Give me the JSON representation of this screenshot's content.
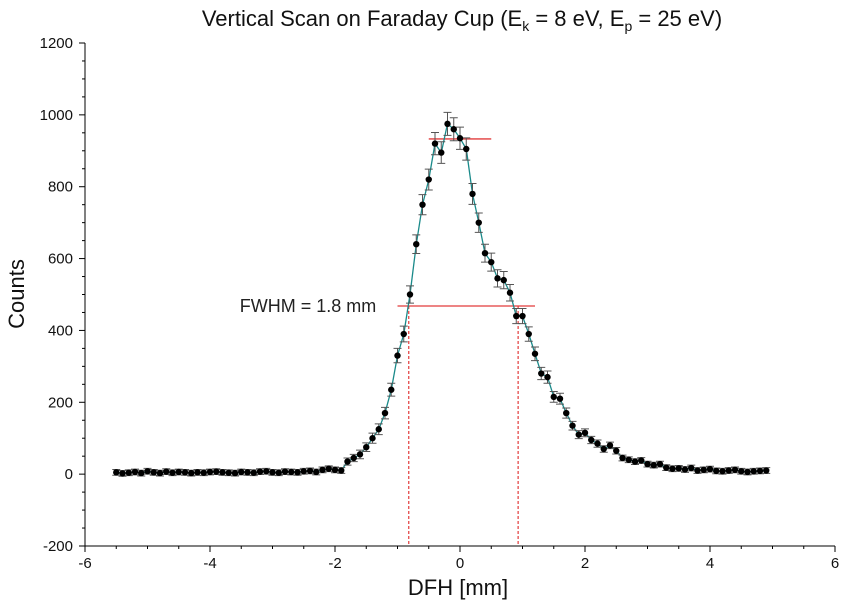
{
  "chart_data": {
    "type": "scatter",
    "title": {
      "prefix": "Vertical Scan on Faraday Cup (E",
      "sub1": "k",
      "mid": " = 8 eV, E",
      "sub2": "p",
      "suffix": " = 25 eV)"
    },
    "xlabel": "DFH [mm]",
    "ylabel": "Counts",
    "xlim": [
      -6,
      6
    ],
    "ylim": [
      -200,
      1200
    ],
    "x_ticks": [
      -6,
      -4,
      -2,
      0,
      2,
      4,
      6
    ],
    "y_ticks": [
      -200,
      0,
      200,
      400,
      600,
      800,
      1000,
      1200
    ],
    "x_tick_labels": [
      "-6",
      "-4",
      "-2",
      "0",
      "2",
      "4",
      "6"
    ],
    "y_tick_labels": [
      "-200",
      "0",
      "200",
      "400",
      "600",
      "800",
      "1000",
      "1200"
    ],
    "grid": false,
    "colors": {
      "points": "#000000",
      "errorbars": "#555555",
      "fit": "#1a8a8a",
      "annotation": "#e23b3b"
    },
    "series": [
      {
        "x": [
          -5.5,
          -5.4,
          -5.3,
          -5.2,
          -5.1,
          -5.0,
          -4.9,
          -4.8,
          -4.7,
          -4.6,
          -4.5,
          -4.4,
          -4.3,
          -4.2,
          -4.1,
          -4.0,
          -3.9,
          -3.8,
          -3.7,
          -3.6,
          -3.5,
          -3.4,
          -3.3,
          -3.2,
          -3.1,
          -3.0,
          -2.9,
          -2.8,
          -2.7,
          -2.6,
          -2.5,
          -2.4,
          -2.3,
          -2.2,
          -2.1,
          -2.0,
          -1.9,
          -1.8,
          -1.7,
          -1.6,
          -1.5,
          -1.4,
          -1.3,
          -1.2,
          -1.1,
          -1.0,
          -0.9,
          -0.8,
          -0.7,
          -0.6,
          -0.5,
          -0.4,
          -0.3,
          -0.2,
          -0.1,
          0.0,
          0.1,
          0.2,
          0.3,
          0.4,
          0.5,
          0.6,
          0.7,
          0.8,
          0.9,
          1.0,
          1.1,
          1.2,
          1.3,
          1.4,
          1.5,
          1.6,
          1.7,
          1.8,
          1.9,
          2.0,
          2.1,
          2.2,
          2.3,
          2.4,
          2.5,
          2.6,
          2.7,
          2.8,
          2.9,
          3.0,
          3.1,
          3.2,
          3.3,
          3.4,
          3.5,
          3.6,
          3.7,
          3.8,
          3.9,
          4.0,
          4.1,
          4.2,
          4.3,
          4.4,
          4.5,
          4.6,
          4.7,
          4.8,
          4.9
        ],
        "y": [
          5,
          2,
          4,
          6,
          3,
          8,
          5,
          3,
          7,
          4,
          6,
          5,
          3,
          5,
          4,
          6,
          7,
          5,
          4,
          3,
          6,
          5,
          4,
          7,
          8,
          5,
          4,
          7,
          6,
          5,
          8,
          9,
          6,
          12,
          15,
          12,
          10,
          35,
          45,
          55,
          75,
          100,
          125,
          170,
          235,
          330,
          390,
          500,
          640,
          750,
          820,
          920,
          895,
          975,
          960,
          935,
          905,
          780,
          700,
          615,
          590,
          545,
          540,
          505,
          440,
          440,
          390,
          335,
          280,
          270,
          215,
          210,
          170,
          135,
          110,
          115,
          95,
          85,
          70,
          80,
          65,
          45,
          40,
          35,
          38,
          28,
          25,
          28,
          18,
          15,
          16,
          13,
          17,
          10,
          12,
          14,
          9,
          8,
          10,
          12,
          8,
          6,
          8,
          9,
          10
        ],
        "err": [
          8,
          8,
          8,
          8,
          8,
          8,
          8,
          8,
          8,
          8,
          8,
          8,
          8,
          8,
          8,
          8,
          8,
          8,
          8,
          8,
          8,
          8,
          8,
          8,
          8,
          8,
          8,
          8,
          8,
          8,
          8,
          8,
          8,
          8,
          8,
          8,
          8,
          10,
          10,
          12,
          12,
          14,
          15,
          16,
          18,
          20,
          22,
          24,
          26,
          28,
          29,
          31,
          30,
          32,
          32,
          31,
          31,
          29,
          27,
          25,
          25,
          24,
          24,
          23,
          21,
          21,
          20,
          19,
          17,
          17,
          15,
          15,
          14,
          12,
          11,
          11,
          10,
          10,
          9,
          9,
          9,
          8,
          8,
          8,
          8,
          8,
          8,
          8,
          8,
          8,
          8,
          8,
          8,
          8,
          8,
          8,
          8,
          8,
          8,
          8,
          8,
          8,
          8,
          8,
          8
        ]
      }
    ],
    "annotations": {
      "fwhm_label": "FWHM = 1.8 mm",
      "fwhm_level": 468,
      "fwhm_left_x": -0.82,
      "fwhm_right_x": 0.93,
      "fwhm_line_x": [
        -1.0,
        1.2
      ],
      "peak_level": 933,
      "peak_line_x": [
        -0.5,
        0.5
      ]
    }
  }
}
